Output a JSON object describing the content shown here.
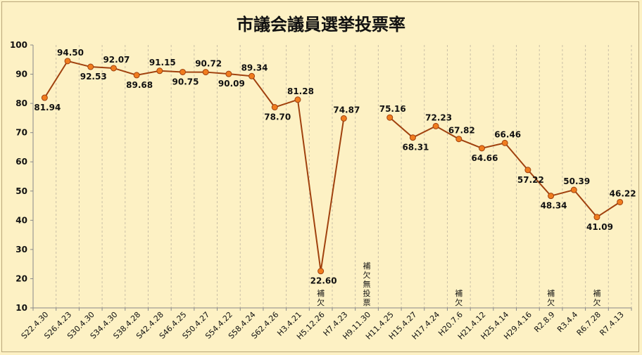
{
  "chart_data": {
    "type": "line",
    "title": "市議会議員選挙投票率",
    "xlabel": "",
    "ylabel": "",
    "ylim": [
      10,
      100
    ],
    "yticks": [
      10,
      20,
      30,
      40,
      50,
      60,
      70,
      80,
      90,
      100
    ],
    "grid": "vertical dashed lines",
    "line_color": "#a0410e",
    "marker_color": "#f07c1e",
    "categories": [
      "S22.4.30",
      "S26.4.23",
      "S30.4.30",
      "S34.4.30",
      "S38.4.28",
      "S42.4.28",
      "S46.4.25",
      "S50.4.27",
      "S54.4.22",
      "S58.4.24",
      "S62.4.26",
      "H3.4.21",
      "H5.12.26",
      "H7.4.23",
      "H9.11.30",
      "H11.4.25",
      "H15.4.27",
      "H17.4.24",
      "H20.7.6",
      "H21.4.12",
      "H25.4.14",
      "H29.4.16",
      "R2.8.9",
      "R3.4.4",
      "R6.7.28",
      "R7.4.13"
    ],
    "values": [
      81.94,
      94.5,
      92.53,
      92.07,
      89.68,
      91.15,
      90.75,
      90.72,
      90.09,
      89.34,
      78.7,
      81.28,
      22.6,
      74.87,
      null,
      75.16,
      68.31,
      72.23,
      67.82,
      64.66,
      66.46,
      57.22,
      48.34,
      50.39,
      41.09,
      46.22
    ],
    "labels": [
      "81.94",
      "94.50",
      "92.53",
      "92.07",
      "89.68",
      "91.15",
      "90.75",
      "90.72",
      "90.09",
      "89.34",
      "78.70",
      "81.28",
      "22.60",
      "74.87",
      "",
      "75.16",
      "68.31",
      "72.23",
      "67.82",
      "64.66",
      "66.46",
      "57.22",
      "48.34",
      "50.39",
      "41.09",
      "46.22"
    ],
    "label_pos": [
      "below",
      "above",
      "below",
      "above",
      "below",
      "above",
      "below",
      "above",
      "below",
      "above",
      "below",
      "above",
      "below",
      "above",
      "",
      "above",
      "below",
      "above",
      "above",
      "below",
      "above",
      "below",
      "below",
      "above",
      "below",
      "above"
    ],
    "annotations": [
      {
        "category": "H5.12.26",
        "text": "補欠"
      },
      {
        "category": "H9.11.30",
        "text": "補欠無投票"
      },
      {
        "category": "H20.7.6",
        "text": "補欠"
      },
      {
        "category": "R2.8.9",
        "text": "補欠"
      },
      {
        "category": "R6.7.28",
        "text": "補欠"
      }
    ]
  }
}
